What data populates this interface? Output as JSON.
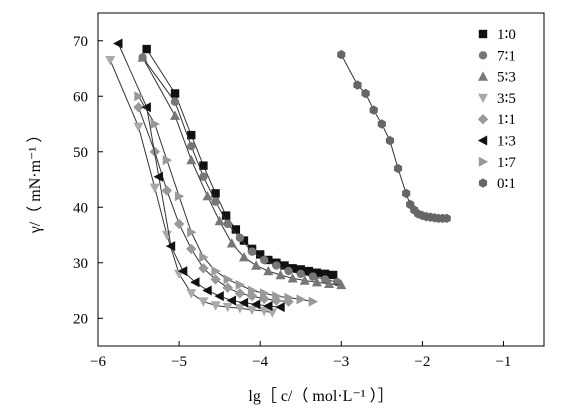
{
  "chart_data": {
    "type": "scatter",
    "title": "",
    "xlabel": "lg［ c/（ mol·L⁻¹ ）］",
    "ylabel": "γ/（ mN·m⁻¹ ）",
    "xlim": [
      -6,
      -0.5
    ],
    "ylim": [
      15,
      75
    ],
    "xticks": [
      -6,
      -5,
      -4,
      -3,
      -2,
      -1
    ],
    "yticks": [
      20,
      30,
      40,
      50,
      60,
      70
    ],
    "legend_position": "top-right",
    "series": [
      {
        "name": "1∶0",
        "marker": "square",
        "color": "#111111",
        "x": [
          -5.4,
          -5.05,
          -4.85,
          -4.7,
          -4.55,
          -4.42,
          -4.3,
          -4.2,
          -4.1,
          -4.0,
          -3.9,
          -3.8,
          -3.7,
          -3.6,
          -3.5,
          -3.4,
          -3.3,
          -3.2,
          -3.1
        ],
        "y": [
          68.5,
          60.5,
          53.0,
          47.5,
          42.5,
          38.5,
          36.0,
          34.0,
          32.5,
          31.5,
          30.5,
          30.0,
          29.5,
          29.0,
          28.8,
          28.5,
          28.2,
          28.0,
          27.8
        ]
      },
      {
        "name": "7∶1",
        "marker": "circle",
        "color": "#777777",
        "x": [
          -5.45,
          -5.05,
          -4.85,
          -4.7,
          -4.55,
          -4.4,
          -4.25,
          -4.1,
          -3.95,
          -3.8,
          -3.65,
          -3.5,
          -3.35,
          -3.2,
          -3.05
        ],
        "y": [
          67.0,
          59.0,
          51.0,
          45.5,
          41.0,
          37.0,
          34.5,
          32.0,
          30.5,
          29.5,
          28.5,
          28.0,
          27.5,
          27.0,
          26.5
        ]
      },
      {
        "name": "5∶3",
        "marker": "triangle-up",
        "color": "#777777",
        "x": [
          -5.45,
          -5.05,
          -4.85,
          -4.65,
          -4.5,
          -4.35,
          -4.2,
          -4.05,
          -3.9,
          -3.75,
          -3.6,
          -3.45,
          -3.3,
          -3.15,
          -3.0
        ],
        "y": [
          67.0,
          56.5,
          48.5,
          42.0,
          37.5,
          33.5,
          31.0,
          29.5,
          28.5,
          27.8,
          27.2,
          26.8,
          26.5,
          26.2,
          26.0
        ]
      },
      {
        "name": "3∶5",
        "marker": "triangle-down",
        "color": "#aaaaaa",
        "x": [
          -5.85,
          -5.5,
          -5.3,
          -5.15,
          -5.0,
          -4.85,
          -4.7,
          -4.55,
          -4.4,
          -4.25,
          -4.1,
          -3.95,
          -3.85
        ],
        "y": [
          66.5,
          54.5,
          43.5,
          35.0,
          28.0,
          24.5,
          23.0,
          22.3,
          22.0,
          21.8,
          21.5,
          21.3,
          21.0
        ]
      },
      {
        "name": "1∶1",
        "marker": "diamond",
        "color": "#999999",
        "x": [
          -5.5,
          -5.3,
          -5.15,
          -5.0,
          -4.85,
          -4.7,
          -4.55,
          -4.4,
          -4.25,
          -4.1,
          -3.95,
          -3.8,
          -3.65
        ],
        "y": [
          58.0,
          50.0,
          43.0,
          37.0,
          32.5,
          29.0,
          27.0,
          25.5,
          24.5,
          24.0,
          23.5,
          23.2,
          23.0
        ]
      },
      {
        "name": "1∶3",
        "marker": "triangle-left",
        "color": "#111111",
        "x": [
          -5.75,
          -5.4,
          -5.25,
          -5.1,
          -4.95,
          -4.8,
          -4.65,
          -4.5,
          -4.35,
          -4.2,
          -4.05,
          -3.9,
          -3.75
        ],
        "y": [
          69.5,
          58.0,
          45.5,
          33.0,
          28.5,
          26.5,
          25.0,
          24.0,
          23.2,
          22.8,
          22.5,
          22.2,
          22.0
        ]
      },
      {
        "name": "1∶7",
        "marker": "triangle-right",
        "color": "#999999",
        "x": [
          -5.5,
          -5.3,
          -5.15,
          -5.0,
          -4.85,
          -4.7,
          -4.55,
          -4.4,
          -4.25,
          -4.1,
          -3.95,
          -3.8,
          -3.65,
          -3.5,
          -3.35
        ],
        "y": [
          60.0,
          55.0,
          48.5,
          42.0,
          35.5,
          31.0,
          28.5,
          27.0,
          26.0,
          25.0,
          24.5,
          24.0,
          23.7,
          23.4,
          23.0
        ]
      },
      {
        "name": "0∶1",
        "marker": "hexagon",
        "color": "#666666",
        "x": [
          -3.0,
          -2.8,
          -2.7,
          -2.6,
          -2.5,
          -2.4,
          -2.3,
          -2.2,
          -2.15,
          -2.1,
          -2.05,
          -2.0,
          -1.95,
          -1.9,
          -1.85,
          -1.8,
          -1.75,
          -1.7
        ],
        "y": [
          67.5,
          62.0,
          60.5,
          57.5,
          55.0,
          52.0,
          47.0,
          42.5,
          40.5,
          39.5,
          38.8,
          38.5,
          38.3,
          38.2,
          38.1,
          38.0,
          38.0,
          38.0
        ]
      }
    ]
  }
}
